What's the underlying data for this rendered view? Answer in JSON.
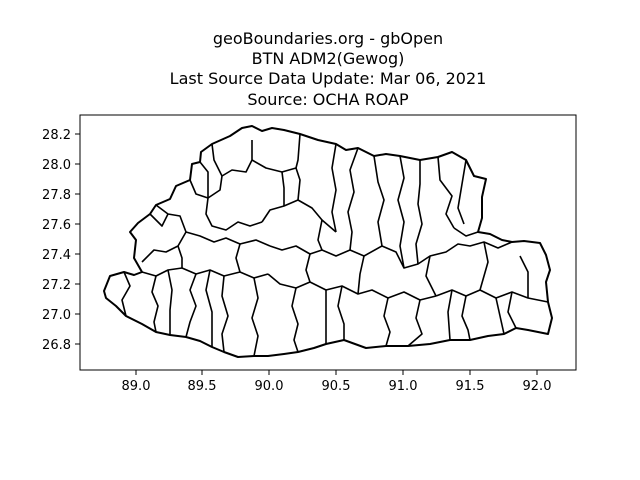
{
  "title_lines": [
    "geoBoundaries.org - gbOpen",
    "BTN ADM2(Gewog)",
    "Last Source Data Update: Mar 06, 2021",
    "Source: OCHA ROAP"
  ],
  "map": {
    "x_ticks": [
      "89.0",
      "89.5",
      "90.0",
      "90.5",
      "91.0",
      "91.5",
      "92.0"
    ],
    "y_ticks": [
      "28.2",
      "28.0",
      "27.8",
      "27.6",
      "27.4",
      "27.2",
      "27.0",
      "26.8"
    ],
    "xlim": [
      88.7,
      92.15
    ],
    "ylim": [
      26.63,
      28.27
    ],
    "stroke_color": "#000000",
    "fill_color": "#ffffff"
  }
}
